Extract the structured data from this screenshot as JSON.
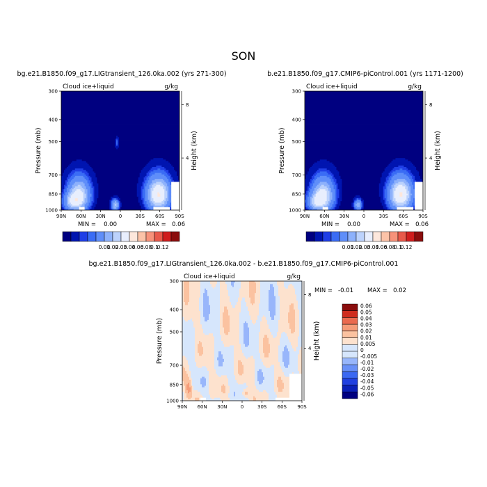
{
  "page": {
    "title": "SON"
  },
  "colors": {
    "abs_levels": [
      "#000080",
      "#0015b0",
      "#1f3ee6",
      "#3a6cf5",
      "#5f8ef9",
      "#8db1fb",
      "#bcd2fc",
      "#e8eefd",
      "#fde7dc",
      "#fcc3a8",
      "#f7927a",
      "#e8594a",
      "#cf1d1d",
      "#8a0d0d"
    ],
    "diff_levels": [
      "#000080",
      "#0a20b8",
      "#2040e0",
      "#3b68f2",
      "#6990f7",
      "#98b6fb",
      "#d6e6fc",
      "#fde2ce",
      "#fbc2a0",
      "#f59c79",
      "#ea6a4f",
      "#cf2c1e",
      "#8a0d0d"
    ]
  },
  "chart_data": [
    {
      "type": "contour",
      "panel": "top-left",
      "title": "bg.e21.B1850.f09_g17.LIGtransient_126.0ka.002 (yrs 271-300)",
      "left_label": "Cloud ice+liquid",
      "right_label": "g/kg",
      "ylabel": "Pressure (mb)",
      "ylabel_right": "Height (km)",
      "x_ticks": [
        "90N",
        "60N",
        "30N",
        "0",
        "30S",
        "60S",
        "90S"
      ],
      "y_ticks": [
        "300",
        "400",
        "500",
        "700",
        "850",
        "1000"
      ],
      "y_ticks_right": [
        "8",
        "4"
      ],
      "min_label": "MIN =",
      "min_value": "0.00",
      "max_label": "MAX =",
      "max_value": "0.06",
      "colorbar_labels": [
        "0.01",
        "0.02",
        "0.03",
        "0.04",
        "0.06",
        "0.08",
        "0.1",
        "0.12"
      ],
      "features": [
        {
          "lat": 63,
          "p": 860,
          "value": 0.045,
          "lat_width": 14,
          "p_depth": 120
        },
        {
          "lat": 72,
          "p": 920,
          "value": 0.03,
          "lat_width": 12,
          "p_depth": 70
        },
        {
          "lat": -58,
          "p": 855,
          "value": 0.06,
          "lat_width": 15,
          "p_depth": 120
        },
        {
          "lat": 8,
          "p": 950,
          "value": 0.03,
          "lat_width": 5,
          "p_depth": 45
        },
        {
          "lat": 5,
          "p": 505,
          "value": 0.006,
          "lat_width": 2,
          "p_depth": 25
        }
      ]
    },
    {
      "type": "contour",
      "panel": "top-right",
      "title": "b.e21.B1850.f09_g17.CMIP6-piControl.001 (yrs 1171-1200)",
      "left_label": "Cloud ice+liquid",
      "right_label": "g/kg",
      "ylabel": "Pressure (mb)",
      "ylabel_right": "Height (km)",
      "x_ticks": [
        "90N",
        "60N",
        "30N",
        "0",
        "30S",
        "60S",
        "90S"
      ],
      "y_ticks": [
        "300",
        "400",
        "500",
        "700",
        "850",
        "1000"
      ],
      "y_ticks_right": [
        "8",
        "4"
      ],
      "min_label": "MIN =",
      "min_value": "0.00",
      "max_label": "MAX =",
      "max_value": "0.06",
      "colorbar_labels": [
        "0.01",
        "0.02",
        "0.03",
        "0.04",
        "0.06",
        "0.08",
        "0.1",
        "0.12"
      ],
      "features": [
        {
          "lat": 62,
          "p": 860,
          "value": 0.045,
          "lat_width": 14,
          "p_depth": 120
        },
        {
          "lat": 72,
          "p": 920,
          "value": 0.03,
          "lat_width": 12,
          "p_depth": 70
        },
        {
          "lat": -56,
          "p": 855,
          "value": 0.06,
          "lat_width": 15,
          "p_depth": 120
        },
        {
          "lat": 9,
          "p": 950,
          "value": 0.025,
          "lat_width": 5,
          "p_depth": 45
        }
      ]
    },
    {
      "type": "contour",
      "panel": "bottom-center",
      "title": "bg.e21.B1850.f09_g17.LIGtransient_126.0ka.002 - b.e21.B1850.f09_g17.CMIP6-piControl.001",
      "left_label": "Cloud ice+liquid",
      "right_label": "g/kg",
      "ylabel": "Pressure (mb)",
      "ylabel_right": "Height (km)",
      "x_ticks": [
        "90N",
        "60N",
        "30N",
        "0",
        "30S",
        "60S",
        "90S"
      ],
      "y_ticks": [
        "300",
        "400",
        "500",
        "700",
        "850",
        "1000"
      ],
      "y_ticks_right": [
        "8",
        "4"
      ],
      "min_label": "MIN =",
      "min_value": "-0.01",
      "max_label": "MAX =",
      "max_value": "0.02",
      "colorbar_labels": [
        "0.06",
        "0.05",
        "0.04",
        "0.03",
        "0.02",
        "0.01",
        "0.005",
        "0",
        "-0.005",
        "-0.01",
        "-0.02",
        "-0.03",
        "-0.04",
        "-0.05",
        "-0.06"
      ],
      "features": [
        {
          "lat": 80,
          "p": 880,
          "value": 0.012,
          "lat_width": 5,
          "p_depth": 90
        },
        {
          "lat": -5,
          "p": 930,
          "value": 0.01,
          "lat_width": 5,
          "p_depth": 40
        }
      ]
    }
  ]
}
